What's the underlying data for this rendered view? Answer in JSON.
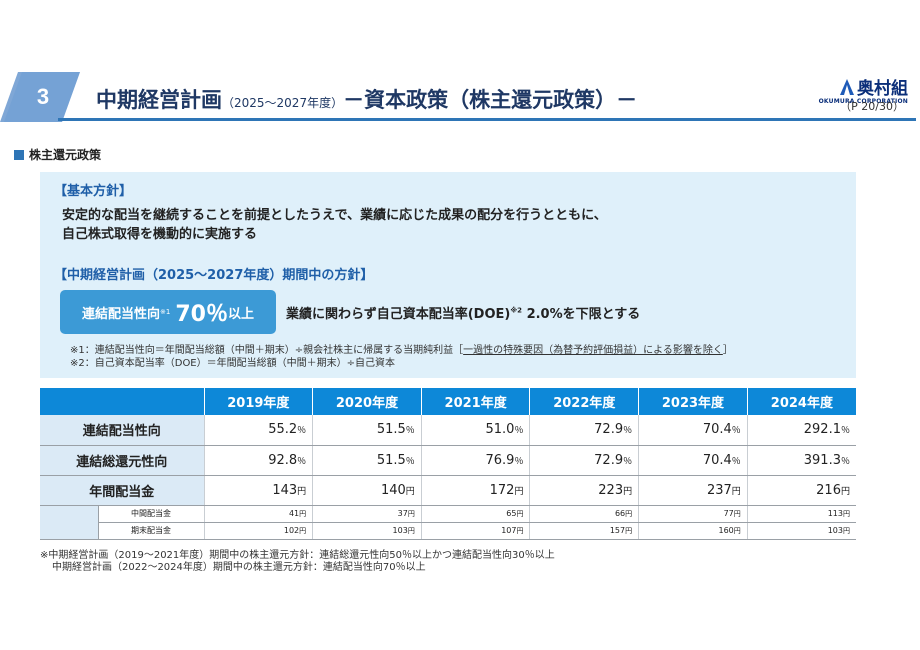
{
  "header": {
    "section_number": "3",
    "title_main": "中期経営計画",
    "title_period": "（2025〜2027年度）",
    "title_rest": "－資本政策（株主還元政策）－",
    "company_name": "奥村組",
    "company_sub": "OKUMURA CORPORATION",
    "page_label": "（P 20/30）",
    "accent_color": "#2e75b6"
  },
  "section_label": "株主還元政策",
  "policy": {
    "basic_heading": "【基本方針】",
    "basic_line1": "安定的な配当を継続することを前提としたうえで、業績に応じた成果の配分を行うとともに、",
    "basic_line2": "自己株式取得を機動的に実施する",
    "plan_heading": "【中期経営計画（2025～2027年度）期間中の方針】",
    "target_label": "連結配当性向",
    "target_mark": "※1",
    "target_value": "70％",
    "target_suffix": "以上",
    "doe_text": "業績に関わらず自己資本配当率(DOE)",
    "doe_mark": "※2",
    "doe_tail": " 2.0%を下限とする",
    "note1_a": "※1：連結配当性向＝年間配当総額（中間＋期末）÷親会社株主に帰属する当期純利益［",
    "note1_b": "一過性の特殊要因（為替予約評価損益）による影響を除く",
    "note1_c": "］",
    "note2": "※2：自己資本配当率（DOE）＝年間配当総額（中間＋期末）÷自己資本"
  },
  "table": {
    "years": [
      "2019年度",
      "2020年度",
      "2021年度",
      "2022年度",
      "2023年度",
      "2024年度"
    ],
    "rows": [
      {
        "label": "連結配当性向",
        "values": [
          "55.2",
          "51.5",
          "51.0",
          "72.9",
          "70.4",
          "292.1"
        ],
        "unit": "％"
      },
      {
        "label": "連結総還元性向",
        "values": [
          "92.8",
          "51.5",
          "76.9",
          "72.9",
          "70.4",
          "391.3"
        ],
        "unit": "％"
      },
      {
        "label": "年間配当金",
        "values": [
          "143",
          "140",
          "172",
          "223",
          "237",
          "216"
        ],
        "unit": "円"
      }
    ],
    "sub_rows": [
      {
        "label": "中間配当金",
        "values": [
          "41",
          "37",
          "65",
          "66",
          "77",
          "113"
        ],
        "unit": "円"
      },
      {
        "label": "期末配当金",
        "values": [
          "102",
          "103",
          "107",
          "157",
          "160",
          "103"
        ],
        "unit": "円"
      }
    ]
  },
  "footnotes": {
    "line1": "※中期経営計画（2019～2021年度）期間中の株主還元方針：連結総還元性向50％以上かつ連結配当性向30％以上",
    "line2": "中期経営計画（2022～2024年度）期間中の株主還元方針：連結配当性向70％以上"
  }
}
